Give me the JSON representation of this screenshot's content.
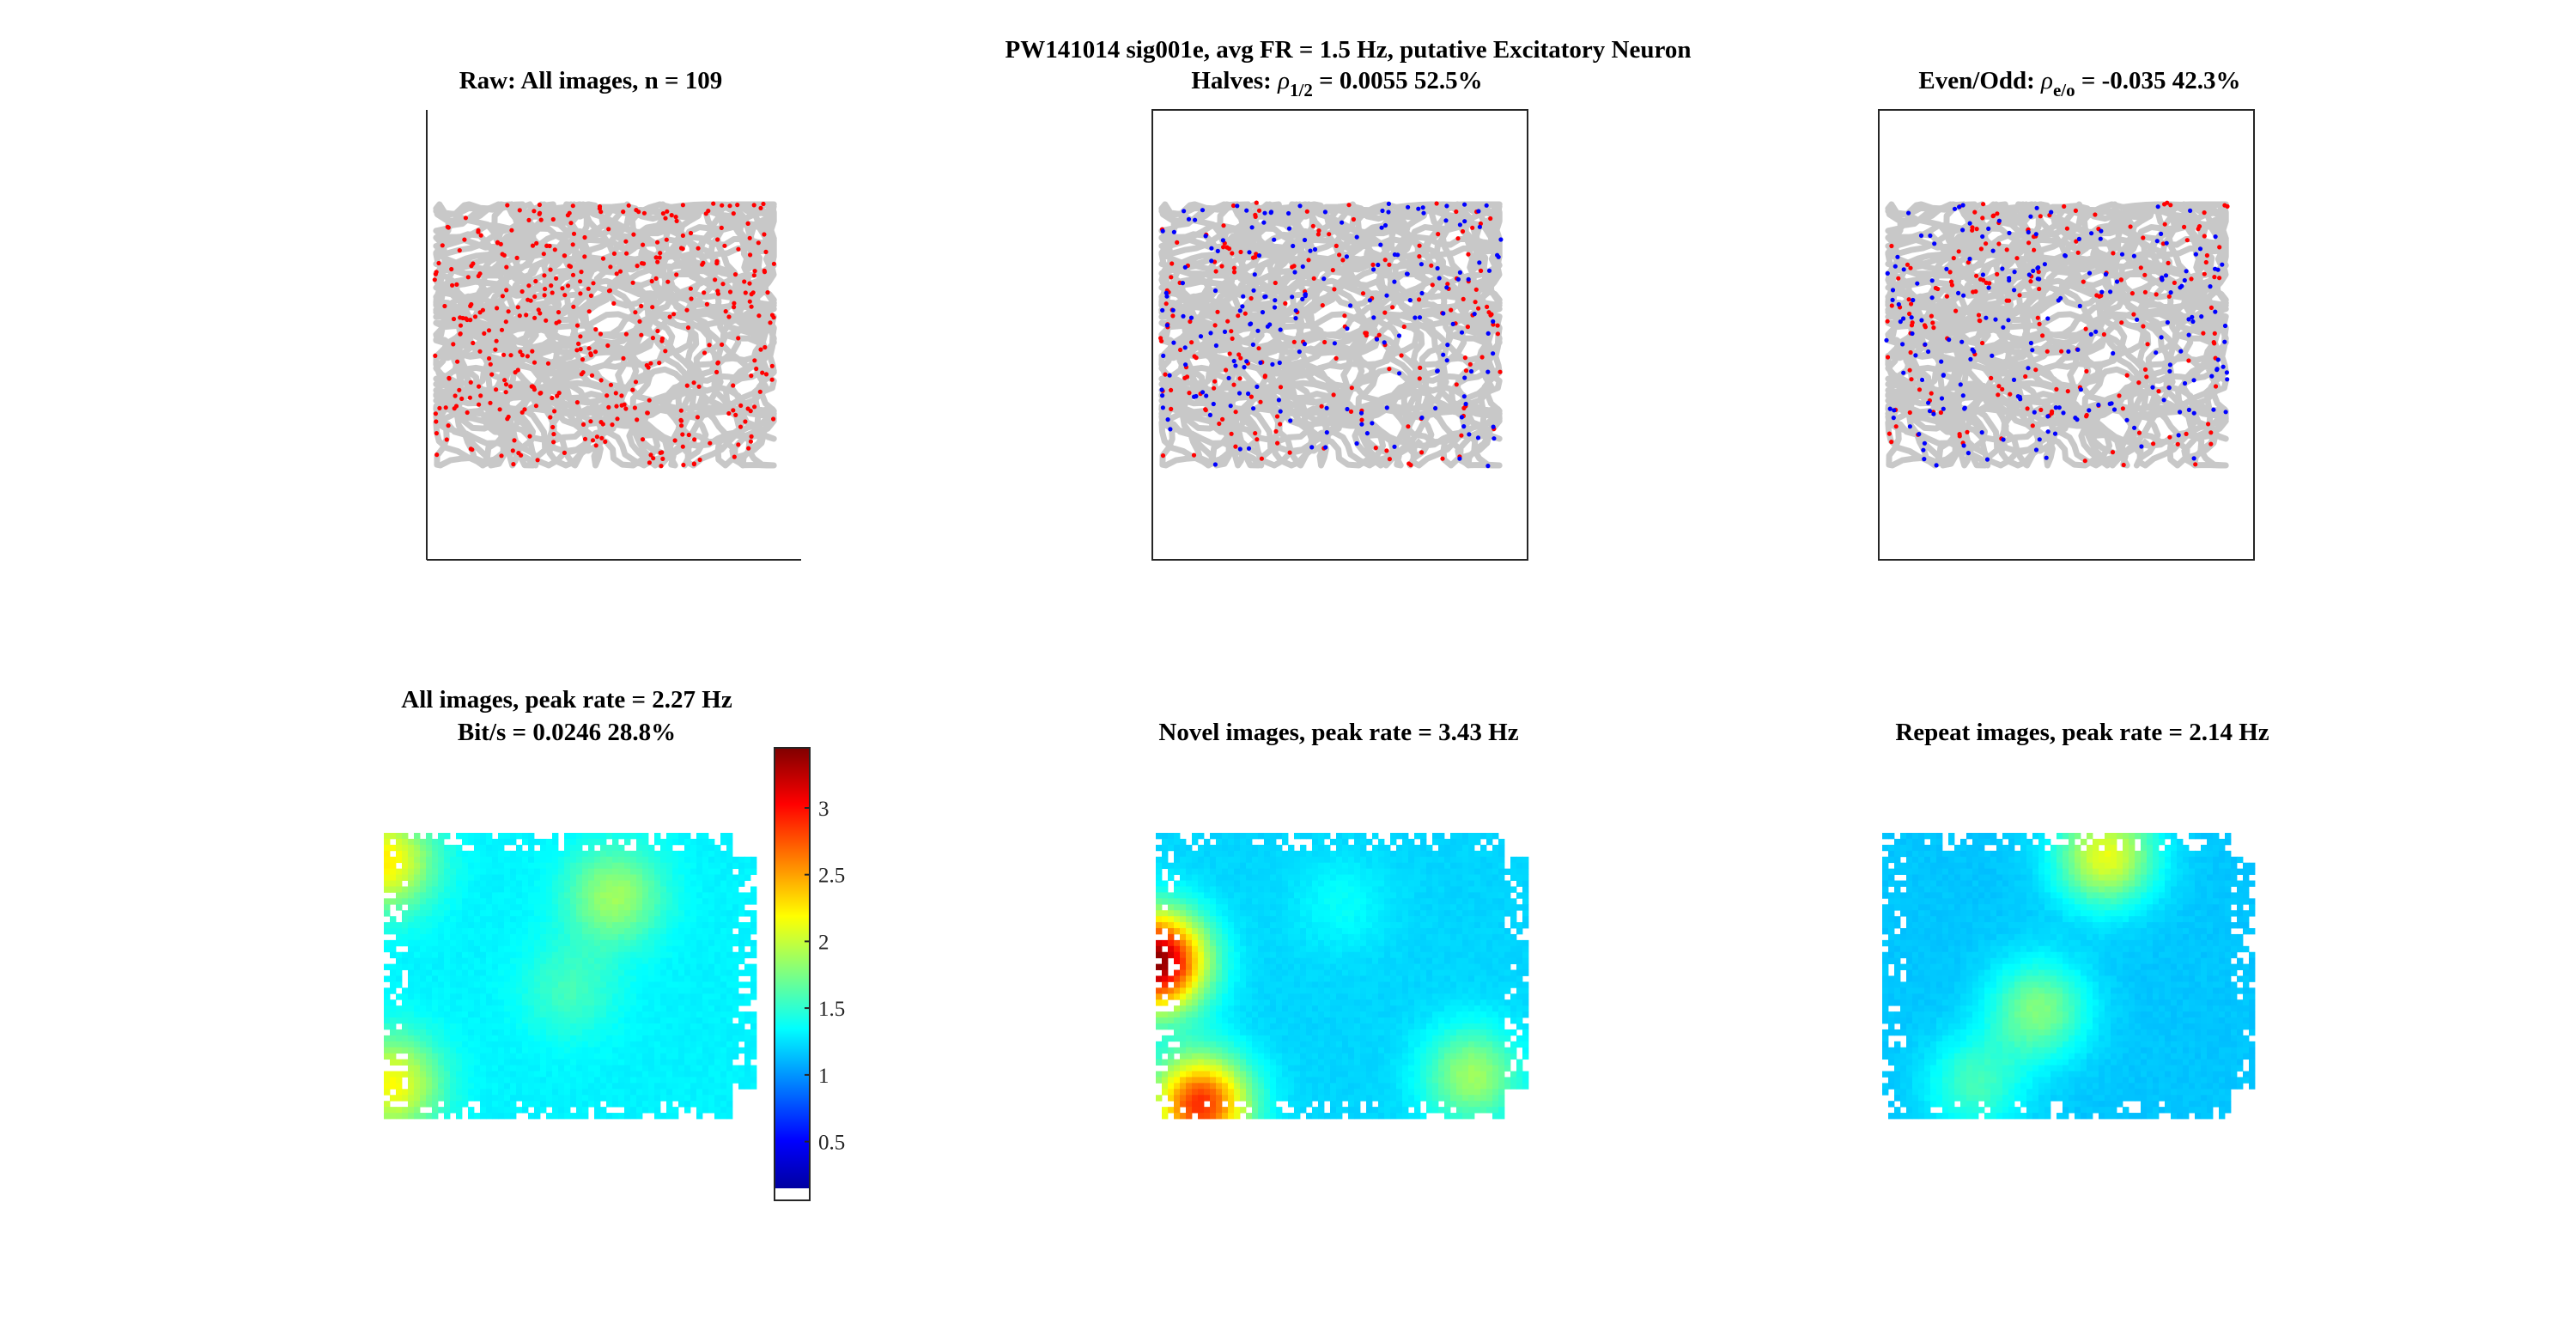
{
  "figure": {
    "suptitle": "PW141014  sig001e, avg FR = 1.5 Hz, putative Excitatory Neuron"
  },
  "panels": {
    "raw": {
      "title": "Raw: All images, n = 109"
    },
    "halves": {
      "title_prefix": "Halves: ",
      "rho_sub": "1/2",
      "title_value": " = 0.0055 52.5%"
    },
    "evenodd": {
      "title_prefix": "Even/Odd: ",
      "rho_sub": "e/o",
      "title_value": " = -0.035 42.3%"
    },
    "all_map": {
      "title_line1": "All images, peak rate = 2.27 Hz",
      "title_line2": "Bit/s = 0.0246 28.8%"
    },
    "novel_map": {
      "title": "Novel images, peak rate = 3.43 Hz"
    },
    "repeat_map": {
      "title": "Repeat images, peak rate = 2.14 Hz"
    }
  },
  "colors": {
    "trajectory": "#c8c8c8",
    "spike_first": "#ff0000",
    "spike_second": "#0000ff",
    "axes": "#262626"
  },
  "chart_data": [
    {
      "type": "scatter",
      "panel": "raw",
      "title": "Raw: All images, n = 109",
      "series": [
        {
          "color": "red",
          "count": 420
        }
      ]
    },
    {
      "type": "scatter",
      "panel": "halves",
      "title": "Halves: ρ1/2 = 0.0055 52.5%",
      "series": [
        {
          "color": "red",
          "count": 200
        },
        {
          "color": "blue",
          "count": 200
        }
      ]
    },
    {
      "type": "scatter",
      "panel": "evenodd",
      "title": "Even/Odd: ρe/o = -0.035 42.3%",
      "series": [
        {
          "color": "red",
          "count": 200
        },
        {
          "color": "blue",
          "count": 200
        }
      ]
    },
    {
      "type": "heatmap",
      "panel": "all_map",
      "title": "All images, peak rate = 2.27 Hz",
      "peak_rate": 2.27,
      "colormap": "jet",
      "clim": [
        0.15,
        3.45
      ],
      "colorbar": {
        "ticks": [
          0.5,
          1,
          1.5,
          2,
          2.5,
          3
        ],
        "tick_labels": [
          "0.5",
          "1",
          "1.5",
          "2",
          "2.5",
          "3"
        ]
      },
      "hotspots": [
        {
          "x": 0.0,
          "y": 0.1,
          "value": 2.27
        },
        {
          "x": 0.02,
          "y": 0.88,
          "value": 2.2
        },
        {
          "x": 0.62,
          "y": 0.22,
          "value": 1.9
        },
        {
          "x": 0.5,
          "y": 0.55,
          "value": 1.6
        }
      ],
      "background_rate": 1.35
    },
    {
      "type": "heatmap",
      "panel": "novel_map",
      "title": "Novel images, peak rate = 3.43 Hz",
      "peak_rate": 3.43,
      "colormap": "jet",
      "clim": [
        0.15,
        3.45
      ],
      "hotspots": [
        {
          "x": 0.0,
          "y": 0.45,
          "value": 3.43
        },
        {
          "x": 0.12,
          "y": 0.95,
          "value": 2.9
        },
        {
          "x": 0.85,
          "y": 0.85,
          "value": 1.9
        },
        {
          "x": 0.5,
          "y": 0.25,
          "value": 1.4
        }
      ],
      "background_rate": 1.25
    },
    {
      "type": "heatmap",
      "panel": "repeat_map",
      "title": "Repeat images, peak rate = 2.14 Hz",
      "peak_rate": 2.14,
      "colormap": "jet",
      "clim": [
        0.15,
        3.45
      ],
      "hotspots": [
        {
          "x": 0.6,
          "y": 0.08,
          "value": 2.14
        },
        {
          "x": 0.42,
          "y": 0.62,
          "value": 1.8
        },
        {
          "x": 0.25,
          "y": 0.88,
          "value": 1.6
        }
      ],
      "background_rate": 1.2
    }
  ]
}
